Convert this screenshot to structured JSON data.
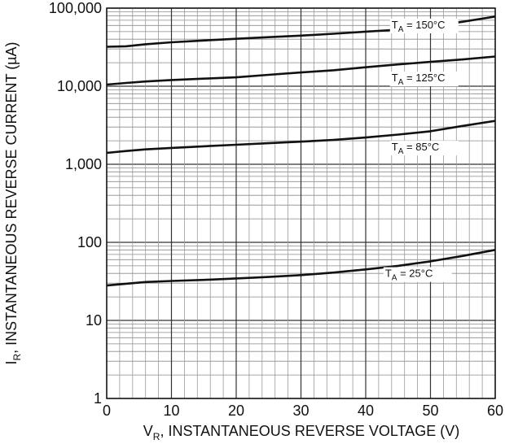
{
  "chart_data": {
    "type": "line",
    "xlabel": {
      "prefix": "V",
      "sub": "R",
      "rest": ", INSTANTANEOUS REVERSE VOLTAGE (V)"
    },
    "ylabel": {
      "prefix": "I",
      "sub": "R",
      "rest": ", INSTANTANEOUS REVERSE CURRENT (µA)"
    },
    "x_ticks": [
      {
        "v": 0,
        "label": "0"
      },
      {
        "v": 10,
        "label": "10"
      },
      {
        "v": 20,
        "label": "20"
      },
      {
        "v": 30,
        "label": "30"
      },
      {
        "v": 40,
        "label": "40"
      },
      {
        "v": 50,
        "label": "50"
      },
      {
        "v": 60,
        "label": "60"
      }
    ],
    "y_ticks": [
      {
        "v": 1,
        "label": "1"
      },
      {
        "v": 10,
        "label": "10"
      },
      {
        "v": 100,
        "label": "100"
      },
      {
        "v": 1000,
        "label": "1,000"
      },
      {
        "v": 10000,
        "label": "10,000"
      },
      {
        "v": 100000,
        "label": "100,000"
      }
    ],
    "xlim": [
      0,
      60
    ],
    "ylim": [
      1,
      100000
    ],
    "y_scale": "log",
    "grid": true,
    "series": [
      {
        "name_main": "T",
        "name_sub": "A",
        "name_rest": " = 150°C",
        "label_at": {
          "x": 44,
          "y": 55000
        },
        "x": [
          0,
          3,
          6,
          10,
          15,
          20,
          25,
          30,
          35,
          40,
          45,
          50,
          55,
          60
        ],
        "y": [
          32000,
          32500,
          34500,
          36500,
          38500,
          40500,
          42500,
          44500,
          47000,
          50000,
          53000,
          58000,
          67000,
          78000
        ]
      },
      {
        "name_main": "T",
        "name_sub": "A",
        "name_rest": " = 125°C",
        "label_at": {
          "x": 44,
          "y": 11500
        },
        "x": [
          0,
          3,
          6,
          10,
          15,
          20,
          25,
          30,
          35,
          40,
          45,
          50,
          55,
          60
        ],
        "y": [
          10500,
          11000,
          11500,
          12000,
          12500,
          13000,
          14000,
          15000,
          16000,
          17500,
          19000,
          20500,
          22000,
          24000
        ]
      },
      {
        "name_main": "T",
        "name_sub": "A",
        "name_rest": " = 85°C",
        "label_at": {
          "x": 44,
          "y": 1500
        },
        "x": [
          0,
          3,
          6,
          10,
          15,
          20,
          25,
          30,
          35,
          40,
          45,
          50,
          55,
          60
        ],
        "y": [
          1400,
          1480,
          1550,
          1620,
          1700,
          1780,
          1860,
          1950,
          2050,
          2200,
          2400,
          2650,
          3100,
          3600
        ]
      },
      {
        "name_main": "T",
        "name_sub": "A",
        "name_rest": " = 25°C",
        "label_at": {
          "x": 43,
          "y": 36
        },
        "x": [
          0,
          3,
          6,
          10,
          15,
          20,
          25,
          30,
          35,
          40,
          45,
          50,
          55,
          60
        ],
        "y": [
          28,
          29.5,
          31,
          32,
          33,
          34.5,
          36,
          38,
          41,
          45,
          50,
          57,
          67,
          80
        ]
      }
    ]
  }
}
